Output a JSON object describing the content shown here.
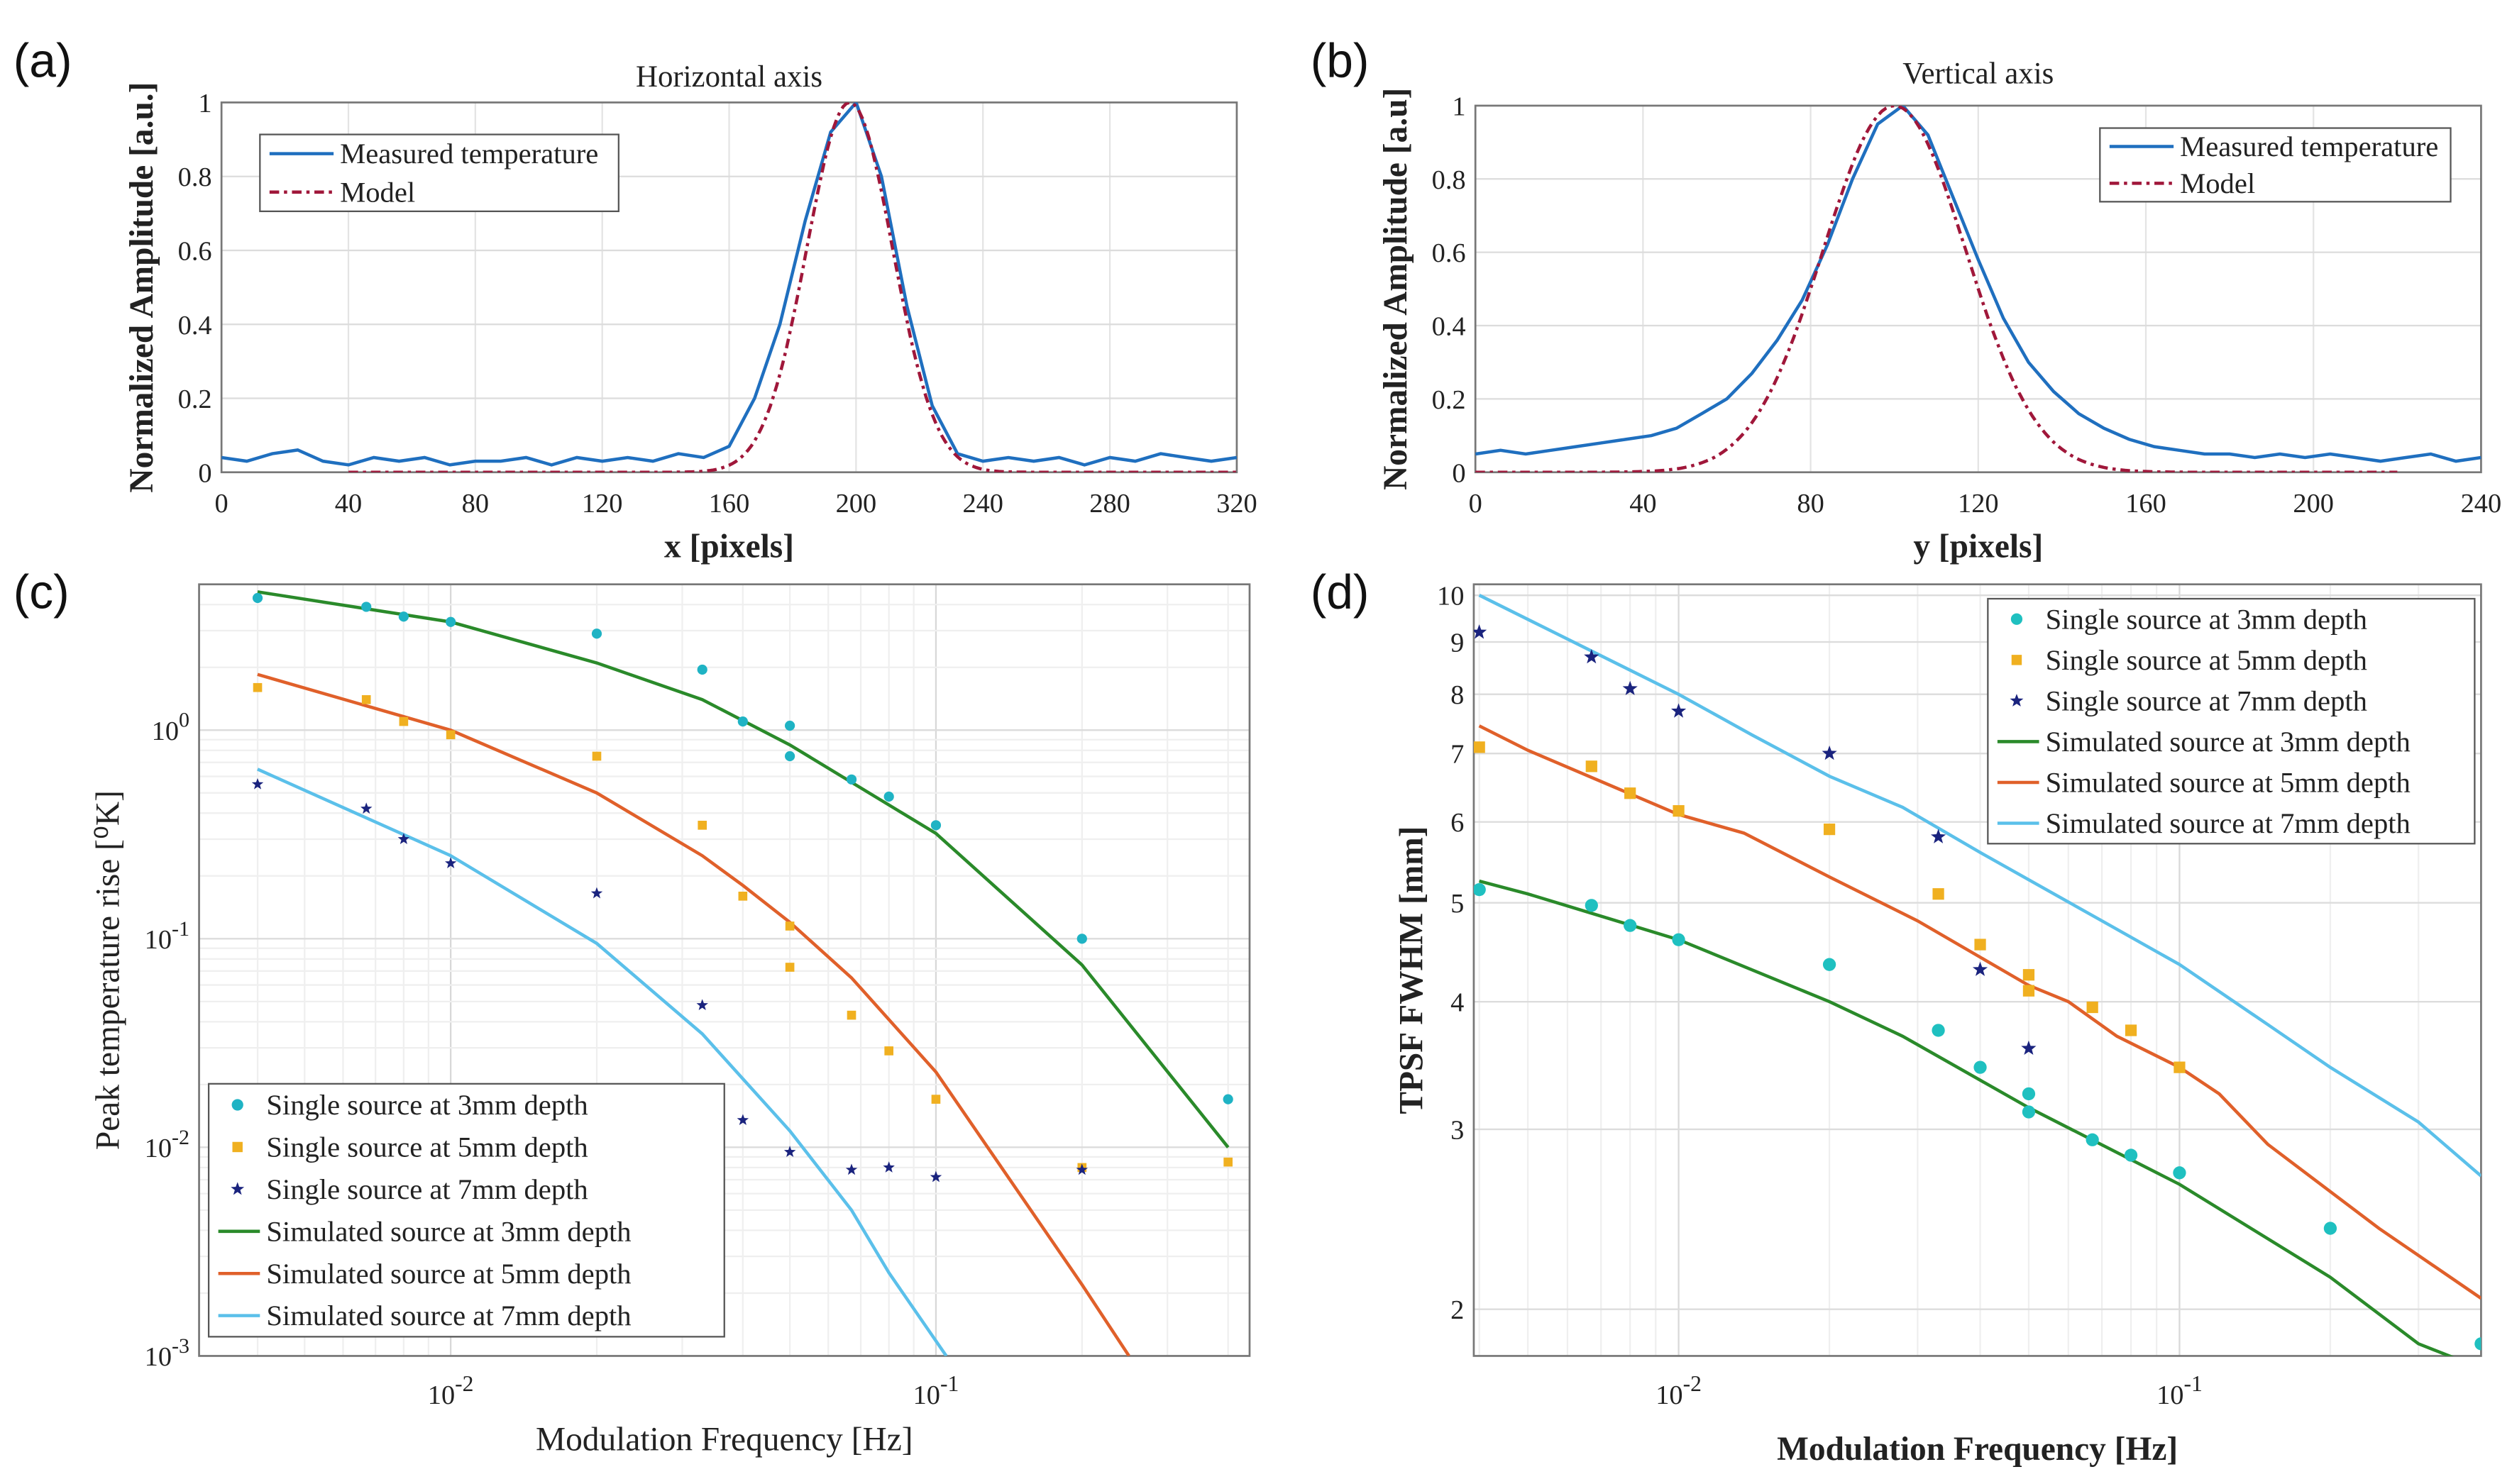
{
  "chart_data": [
    {
      "panel": "(a)",
      "type": "line",
      "title": "Horizontal axis",
      "xlabel": "x [pixels]",
      "ylabel": "Normalized Amplitude [a.u.]",
      "xscale": "linear",
      "yscale": "linear",
      "xlim": [
        0,
        320
      ],
      "ylim": [
        0,
        1
      ],
      "grid": true,
      "legend": "top-left",
      "xticks": [
        0,
        40,
        80,
        120,
        160,
        200,
        240,
        280,
        320
      ],
      "xtick_labels": [
        "0",
        "40",
        "80",
        "120",
        "160",
        "200",
        "240",
        "280",
        "320"
      ],
      "yticks": [
        0,
        0.2,
        0.4,
        0.6,
        0.8,
        1
      ],
      "ytick_labels": [
        "0",
        "0.2",
        "0.4",
        "0.6",
        "0.8",
        "1"
      ],
      "series": [
        {
          "name": "Measured temperature",
          "style": "solid",
          "color": "#1f6fbf",
          "x": [
            0,
            8,
            16,
            24,
            32,
            40,
            48,
            56,
            64,
            72,
            80,
            88,
            96,
            104,
            112,
            120,
            128,
            136,
            144,
            152,
            160,
            168,
            176,
            184,
            192,
            200,
            208,
            216,
            224,
            232,
            240,
            248,
            256,
            264,
            272,
            280,
            288,
            296,
            304,
            312,
            320
          ],
          "y": [
            0.04,
            0.03,
            0.05,
            0.06,
            0.03,
            0.02,
            0.04,
            0.03,
            0.04,
            0.02,
            0.03,
            0.03,
            0.04,
            0.02,
            0.04,
            0.03,
            0.04,
            0.03,
            0.05,
            0.04,
            0.07,
            0.2,
            0.4,
            0.68,
            0.92,
            1.0,
            0.8,
            0.45,
            0.18,
            0.05,
            0.03,
            0.04,
            0.03,
            0.04,
            0.02,
            0.04,
            0.03,
            0.05,
            0.04,
            0.03,
            0.04
          ]
        },
        {
          "name": "Model",
          "style": "dashdot",
          "color": "#a0173a",
          "gaussian": {
            "center": 198,
            "sigma": 13.5,
            "from": 40,
            "to": 320
          }
        }
      ]
    },
    {
      "panel": "(b)",
      "type": "line",
      "title": "Vertical axis",
      "xlabel": "y [pixels]",
      "ylabel": "Normalized Amplitude [a.u]",
      "xscale": "linear",
      "yscale": "linear",
      "xlim": [
        0,
        240
      ],
      "ylim": [
        0,
        1
      ],
      "grid": true,
      "legend": "top-right",
      "xticks": [
        0,
        40,
        80,
        120,
        160,
        200,
        240
      ],
      "xtick_labels": [
        "0",
        "40",
        "80",
        "120",
        "160",
        "200",
        "240"
      ],
      "yticks": [
        0,
        0.2,
        0.4,
        0.6,
        0.8,
        1
      ],
      "ytick_labels": [
        "0",
        "0.2",
        "0.4",
        "0.6",
        "0.8",
        "1"
      ],
      "series": [
        {
          "name": "Measured temperature",
          "style": "solid",
          "color": "#1f6fbf",
          "x": [
            0,
            6,
            12,
            18,
            24,
            30,
            36,
            42,
            48,
            54,
            60,
            66,
            72,
            78,
            84,
            90,
            96,
            102,
            108,
            114,
            120,
            126,
            132,
            138,
            144,
            150,
            156,
            162,
            168,
            174,
            180,
            186,
            192,
            198,
            204,
            210,
            216,
            222,
            228,
            234,
            240
          ],
          "y": [
            0.05,
            0.06,
            0.05,
            0.06,
            0.07,
            0.08,
            0.09,
            0.1,
            0.12,
            0.16,
            0.2,
            0.27,
            0.36,
            0.47,
            0.62,
            0.8,
            0.95,
            1.0,
            0.92,
            0.75,
            0.58,
            0.42,
            0.3,
            0.22,
            0.16,
            0.12,
            0.09,
            0.07,
            0.06,
            0.05,
            0.05,
            0.04,
            0.05,
            0.04,
            0.05,
            0.04,
            0.03,
            0.04,
            0.05,
            0.03,
            0.04
          ]
        },
        {
          "name": "Model",
          "style": "dashdot",
          "color": "#a0173a",
          "gaussian": {
            "center": 100,
            "sigma": 17,
            "from": 0,
            "to": 220
          }
        }
      ]
    },
    {
      "panel": "(c)",
      "type": "scatter",
      "title": "",
      "xlabel": "Modulation Frequency [Hz]",
      "ylabel": "Peak temperature rise [⁰K]",
      "xscale": "log",
      "yscale": "log",
      "xlim": [
        0.00303,
        0.443
      ],
      "ylim": [
        0.001,
        5.0
      ],
      "grid": true,
      "legend": "bottom-left",
      "xticks": [
        0.01,
        0.1
      ],
      "xtick_labels": [
        "10^-2",
        "10^-1"
      ],
      "yticks": [
        0.001,
        0.01,
        0.1,
        1
      ],
      "ytick_labels": [
        "10^-3",
        "10^-2",
        "10^-1",
        "10^0"
      ],
      "series": [
        {
          "name": "Single source at 3mm depth",
          "marker": "circle",
          "color": "#1fb3c4",
          "x": [
            0.004,
            0.0067,
            0.008,
            0.01,
            0.02,
            0.033,
            0.04,
            0.05,
            0.05,
            0.067,
            0.08,
            0.1,
            0.2,
            0.4
          ],
          "y": [
            4.3,
            3.9,
            3.5,
            3.3,
            2.9,
            1.95,
            1.1,
            1.05,
            0.75,
            0.58,
            0.48,
            0.35,
            0.1,
            0.017
          ]
        },
        {
          "name": "Single source at 5mm depth",
          "marker": "square",
          "color": "#f0b020",
          "x": [
            0.004,
            0.0067,
            0.008,
            0.01,
            0.02,
            0.033,
            0.04,
            0.05,
            0.05,
            0.067,
            0.08,
            0.1,
            0.2,
            0.4
          ],
          "y": [
            1.6,
            1.4,
            1.1,
            0.95,
            0.75,
            0.35,
            0.16,
            0.115,
            0.073,
            0.043,
            0.029,
            0.017,
            0.008,
            0.0085
          ]
        },
        {
          "name": "Single source at 7mm depth",
          "marker": "star",
          "color": "#1a237e",
          "x": [
            0.004,
            0.0067,
            0.008,
            0.01,
            0.02,
            0.033,
            0.04,
            0.05,
            0.067,
            0.08,
            0.1,
            0.2
          ],
          "y": [
            0.55,
            0.42,
            0.3,
            0.23,
            0.165,
            0.048,
            0.0135,
            0.0095,
            0.0078,
            0.008,
            0.0072,
            0.0078
          ]
        },
        {
          "name": "Simulated source at 3mm depth",
          "style": "solid",
          "color": "#2a8a2a",
          "x": [
            0.004,
            0.01,
            0.02,
            0.033,
            0.05,
            0.1,
            0.2,
            0.4
          ],
          "y": [
            4.6,
            3.3,
            2.1,
            1.4,
            0.85,
            0.32,
            0.075,
            0.01
          ]
        },
        {
          "name": "Simulated source at 5mm depth",
          "style": "solid",
          "color": "#e0602a",
          "x": [
            0.004,
            0.01,
            0.02,
            0.033,
            0.04,
            0.05,
            0.067,
            0.1,
            0.2,
            0.25
          ],
          "y": [
            1.85,
            1.0,
            0.5,
            0.25,
            0.18,
            0.12,
            0.065,
            0.023,
            0.0022,
            0.001
          ]
        },
        {
          "name": "Simulated source at 7mm depth",
          "style": "solid",
          "color": "#5bc0ea",
          "x": [
            0.004,
            0.01,
            0.02,
            0.033,
            0.05,
            0.067,
            0.08,
            0.105
          ],
          "y": [
            0.65,
            0.25,
            0.095,
            0.035,
            0.012,
            0.005,
            0.0025,
            0.001
          ]
        }
      ]
    },
    {
      "panel": "(d)",
      "type": "scatter",
      "title": "",
      "xlabel": "Modulation Frequency [Hz]",
      "ylabel": "TPSF FWHM [mm]",
      "xscale": "log",
      "yscale": "log",
      "xlim": [
        0.0039,
        0.4
      ],
      "ylim": [
        1.8,
        10.25
      ],
      "grid": true,
      "legend": "top-right",
      "xticks": [
        0.01,
        0.1
      ],
      "xtick_labels": [
        "10^-2",
        "10^-1"
      ],
      "yticks": [
        2,
        3,
        4,
        5,
        6,
        7,
        8,
        9,
        10
      ],
      "ytick_labels": [
        "2",
        "3",
        "4",
        "5",
        "6",
        "7",
        "8",
        "9",
        "10"
      ],
      "series": [
        {
          "name": "Single source at 3mm depth",
          "marker": "circle",
          "color": "#1fc0c0",
          "x": [
            0.004,
            0.0067,
            0.008,
            0.01,
            0.02,
            0.033,
            0.04,
            0.05,
            0.05,
            0.067,
            0.08,
            0.1,
            0.2,
            0.4
          ],
          "y": [
            5.15,
            4.97,
            4.75,
            4.6,
            4.35,
            3.75,
            3.45,
            3.25,
            3.12,
            2.93,
            2.83,
            2.72,
            2.4,
            1.85
          ]
        },
        {
          "name": "Single source at 5mm depth",
          "marker": "square",
          "color": "#f0b020",
          "x": [
            0.004,
            0.0067,
            0.008,
            0.01,
            0.02,
            0.033,
            0.04,
            0.05,
            0.05,
            0.067,
            0.08,
            0.1
          ],
          "y": [
            7.1,
            6.8,
            6.4,
            6.15,
            5.9,
            5.1,
            4.55,
            4.25,
            4.1,
            3.95,
            3.75,
            3.45
          ]
        },
        {
          "name": "Single source at 7mm depth",
          "marker": "star",
          "color": "#1a237e",
          "x": [
            0.004,
            0.0067,
            0.008,
            0.01,
            0.02,
            0.033,
            0.04,
            0.05
          ],
          "y": [
            9.2,
            8.7,
            8.1,
            7.7,
            7.0,
            5.8,
            4.3,
            3.6
          ]
        },
        {
          "name": "Simulated source at 3mm depth",
          "style": "solid",
          "color": "#2a8a2a",
          "x": [
            0.004,
            0.005,
            0.01,
            0.02,
            0.028,
            0.05,
            0.1,
            0.2,
            0.3,
            0.4
          ],
          "y": [
            5.25,
            5.1,
            4.6,
            4.0,
            3.7,
            3.15,
            2.65,
            2.15,
            1.85,
            1.75
          ]
        },
        {
          "name": "Simulated source at 5mm depth",
          "style": "solid",
          "color": "#e0602a",
          "x": [
            0.004,
            0.005,
            0.01,
            0.0135,
            0.02,
            0.03,
            0.05,
            0.06,
            0.075,
            0.1,
            0.12,
            0.15,
            0.25,
            0.4
          ],
          "y": [
            7.45,
            7.05,
            6.1,
            5.85,
            5.3,
            4.8,
            4.15,
            4.0,
            3.7,
            3.45,
            3.25,
            2.9,
            2.4,
            2.05
          ]
        },
        {
          "name": "Simulated source at 7mm depth",
          "style": "solid",
          "color": "#5bc0ea",
          "x": [
            0.004,
            0.01,
            0.014,
            0.02,
            0.028,
            0.04,
            0.07,
            0.1,
            0.15,
            0.2,
            0.3,
            0.4
          ],
          "y": [
            10,
            8.0,
            7.3,
            6.65,
            6.2,
            5.6,
            4.8,
            4.35,
            3.8,
            3.45,
            3.05,
            2.7
          ]
        }
      ]
    }
  ]
}
